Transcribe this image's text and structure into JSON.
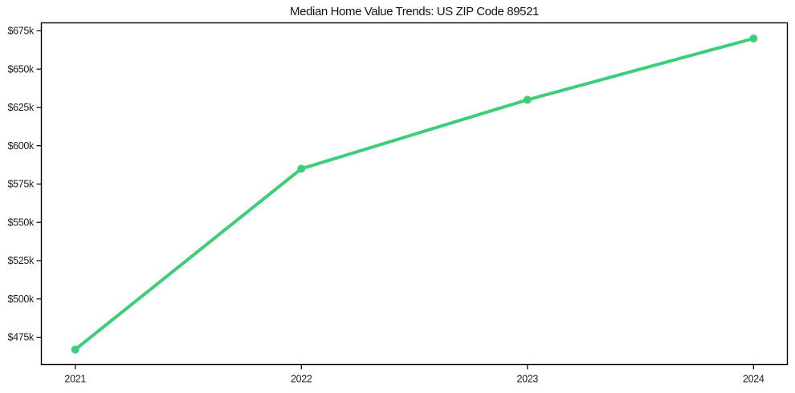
{
  "chart_data": {
    "type": "line",
    "title": "Median Home Value Trends: US ZIP Code 89521",
    "xlabel": "",
    "ylabel": "",
    "x": [
      2021,
      2022,
      2023,
      2024
    ],
    "x_tick_labels": [
      "2021",
      "2022",
      "2023",
      "2024"
    ],
    "values": [
      467000,
      585000,
      630000,
      670000
    ],
    "y_ticks": [
      475000,
      500000,
      525000,
      550000,
      575000,
      600000,
      625000,
      650000,
      675000
    ],
    "y_tick_labels": [
      "$475k",
      "$500k",
      "$525k",
      "$550k",
      "$575k",
      "$600k",
      "$625k",
      "$650k",
      "$675k"
    ],
    "xlim": [
      2020.85,
      2024.15
    ],
    "ylim": [
      457200,
      680200
    ],
    "grid": false,
    "legend": "none",
    "marker": "circle",
    "line_color": "#3ecd78",
    "axis_color": "#000000",
    "text_color": "#1c1c1c"
  }
}
